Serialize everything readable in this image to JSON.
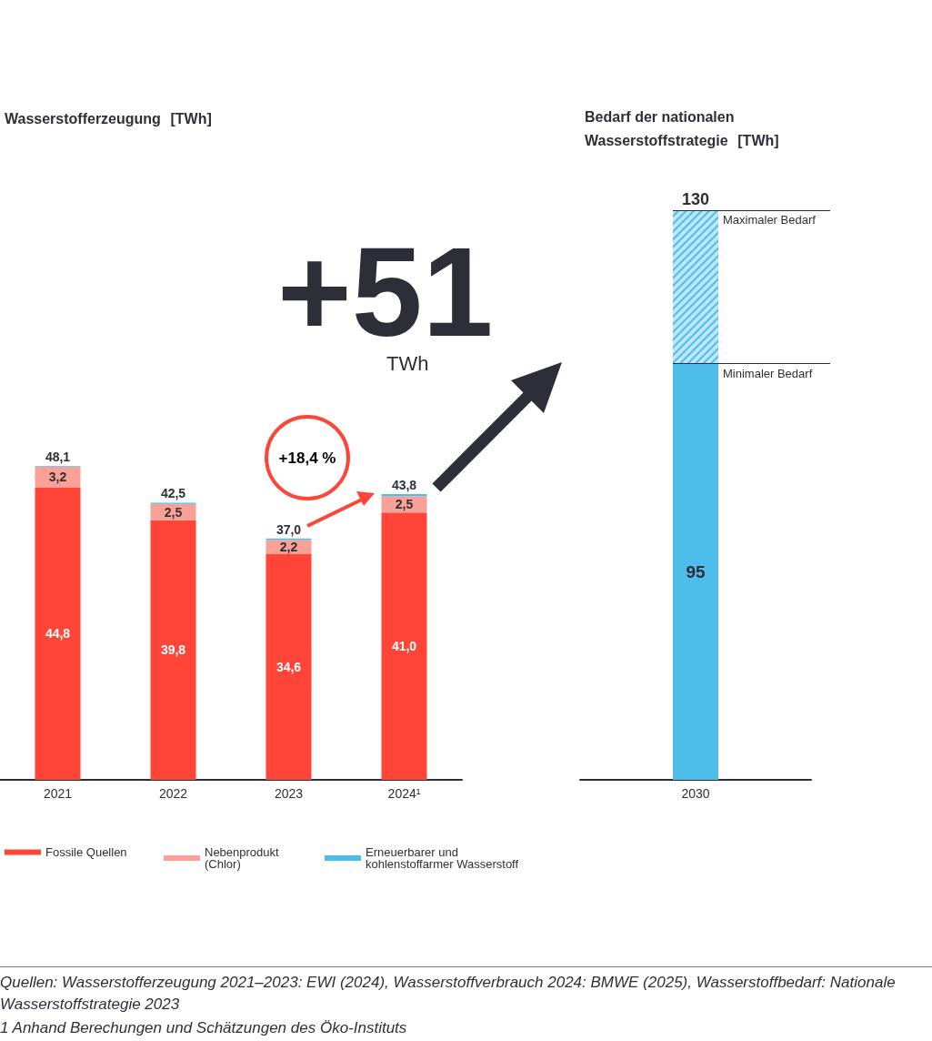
{
  "chart_data": [
    {
      "type": "bar",
      "title": "Wasserstofferzeugung [TWh]",
      "categories": [
        "2021",
        "2022",
        "2023",
        "2024¹"
      ],
      "stacked": true,
      "tick_labels": false,
      "legend": "bottom",
      "series": [
        {
          "name": "Fossile Quellen",
          "color": "#ff4438",
          "values": [
            44.8,
            39.8,
            34.6,
            41.0
          ],
          "value_labels": [
            "44,8",
            "39,8",
            "34,6",
            "41,0"
          ]
        },
        {
          "name": "Nebenprodukt (Chlor)",
          "color": "#f9a196",
          "values": [
            3.2,
            2.5,
            2.2,
            2.5
          ],
          "value_labels": [
            "3,2",
            "2,5",
            "2,2",
            "2,5"
          ]
        },
        {
          "name": "Erneuerbarer und kohlenstoffarmer Wasserstoff",
          "color": "#4dbde9",
          "values": [
            0.1,
            0.2,
            0.2,
            0.3
          ]
        }
      ],
      "totals": [
        "48,1",
        "42,5",
        "37,0",
        "43,8"
      ],
      "annotations": [
        "+51",
        "TWh",
        "+18,4 %",
        "Quellen: Wasserstofferzeugung 2021–2023: EWI (2024), Wasserstoffverbrauch 2024: BMWE (2025), Wasserstoffbedarf: Nationale Wasserstoffstrategie 2023",
        "1  Anhand Berechungen und Schätzungen des Öko-Instituts"
      ]
    },
    {
      "type": "bar",
      "title": "Bedarf der nationalen Wasserstoffstrategie [TWh]",
      "categories": [
        "2030"
      ],
      "stacked": true,
      "tick_labels": false,
      "series": [
        {
          "color": "#4dbde9",
          "values": [
            95
          ],
          "value_labels": [
            "95"
          ]
        },
        {
          "color": "#4dbde9",
          "values": [
            35
          ]
        }
      ],
      "totals": [
        "130"
      ],
      "ref_lines": [
        {
          "axis": "y",
          "value": 130,
          "label": "Maximaler Bedarf"
        },
        {
          "axis": "y",
          "value": 95,
          "label": "Minimaler Bedarf"
        }
      ]
    }
  ]
}
